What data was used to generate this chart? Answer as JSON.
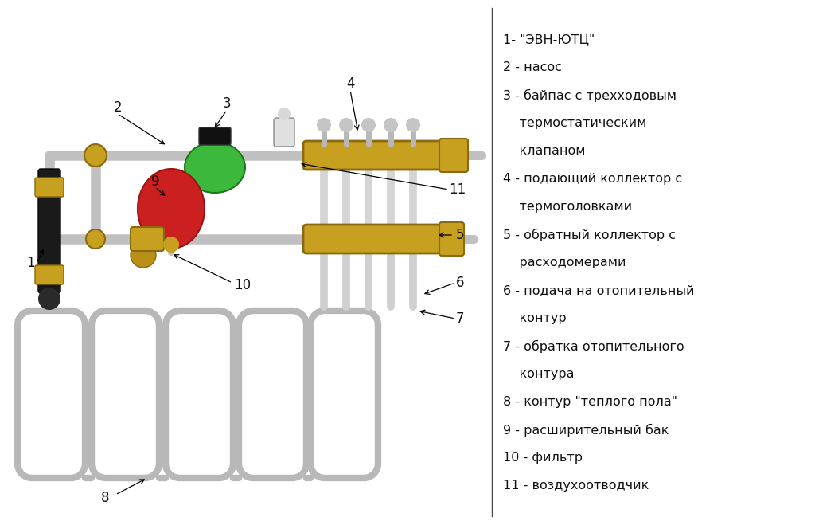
{
  "bg_color": "#ffffff",
  "fig_w": 10.24,
  "fig_h": 6.59,
  "dpi": 100,
  "legend_lines": [
    "1- \"ЭВН-ЮТЦ\"",
    "2 - насос",
    "3 - байпас с трехходовым",
    "    термостатическим",
    "    клапаном",
    "4 - подающий коллектор с",
    "    термоголовками",
    "5 - обратный коллектор с",
    "    расходомерами",
    "6 - подача на отопительный",
    "    контур",
    "7 - обратка отопительного",
    "    контура",
    "8 - контур \"теплого пола\"",
    "9 - расширительный бак",
    "10 - фильтр",
    "11 - воздухоотводчик"
  ],
  "pipe_color": "#c0c0c0",
  "pipe_lw": 9,
  "collector_color": "#c8a020",
  "collector_edge": "#8a6a10",
  "loop_color": "#b8b8b8",
  "loop_lw": 6,
  "green_color": "#3cb83c",
  "red_color": "#cc2020",
  "black_color": "#1a1a1a",
  "label_fs": 12
}
